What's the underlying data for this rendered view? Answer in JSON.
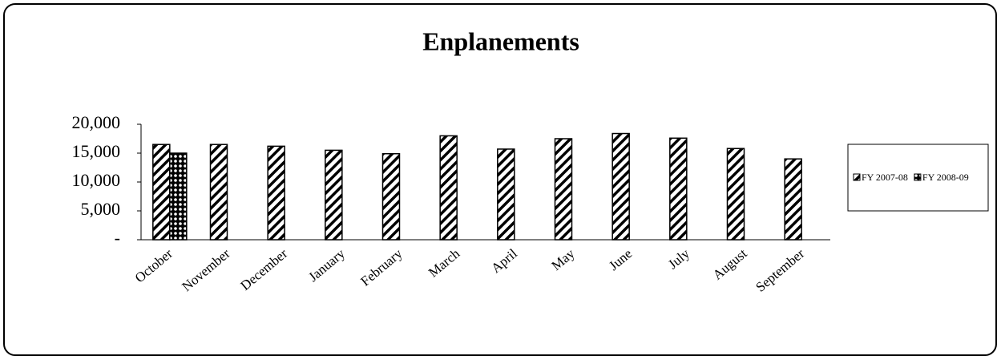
{
  "chart_data": {
    "type": "bar",
    "title": "Enplanements",
    "categories": [
      "October",
      "November",
      "December",
      "January",
      "February",
      "March",
      "April",
      "May",
      "June",
      "July",
      "August",
      "September"
    ],
    "series": [
      {
        "name": "FY 2007-08",
        "color": "#000000",
        "pattern": "hatch",
        "values": [
          16500,
          16500,
          16200,
          15500,
          14900,
          18000,
          15700,
          17500,
          18400,
          17600,
          15800,
          14000
        ]
      },
      {
        "name": "FY 2008-09",
        "color": "#000000",
        "pattern": "checker",
        "values": [
          15000,
          null,
          null,
          null,
          null,
          null,
          null,
          null,
          null,
          null,
          null,
          null
        ]
      }
    ],
    "ylim": [
      0,
      20000
    ],
    "yticks": [
      {
        "value": 0,
        "label": "-"
      },
      {
        "value": 5000,
        "label": "5,000"
      },
      {
        "value": 10000,
        "label": "10,000"
      },
      {
        "value": 15000,
        "label": "15,000"
      },
      {
        "value": 20000,
        "label": "20,000"
      }
    ],
    "legend": "right"
  }
}
